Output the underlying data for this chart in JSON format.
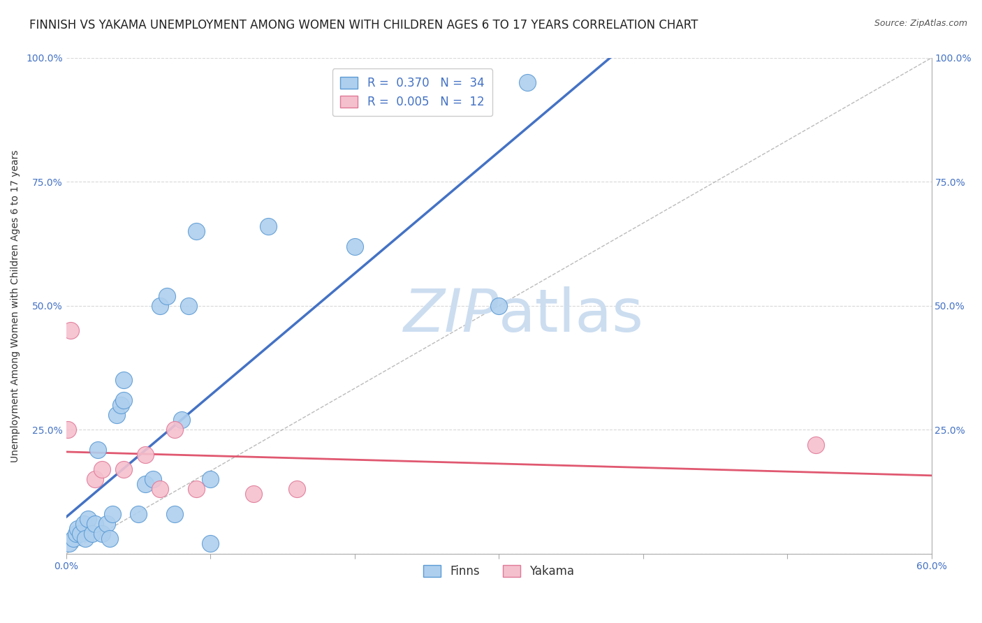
{
  "title": "FINNISH VS YAKAMA UNEMPLOYMENT AMONG WOMEN WITH CHILDREN AGES 6 TO 17 YEARS CORRELATION CHART",
  "source": "Source: ZipAtlas.com",
  "ylabel": "Unemployment Among Women with Children Ages 6 to 17 years",
  "xlim": [
    0.0,
    0.6
  ],
  "ylim": [
    0.0,
    1.0
  ],
  "xticks": [
    0.0,
    0.1,
    0.2,
    0.3,
    0.4,
    0.5,
    0.6
  ],
  "yticks": [
    0.0,
    0.25,
    0.5,
    0.75,
    1.0
  ],
  "finns_R": 0.37,
  "finns_N": 34,
  "yakama_R": 0.005,
  "yakama_N": 12,
  "finns_color": "#aecfee",
  "finns_edge_color": "#5b9bd5",
  "yakama_color": "#f5c0ce",
  "yakama_edge_color": "#e07898",
  "trend_finns_color": "#4472c4",
  "trend_yakama_color": "#e05870",
  "diag_color": "#aaaaaa",
  "watermark_color": "#ccddf0",
  "tick_color": "#4472c4",
  "finns_x": [
    0.002,
    0.005,
    0.007,
    0.008,
    0.01,
    0.012,
    0.013,
    0.015,
    0.018,
    0.02,
    0.022,
    0.025,
    0.028,
    0.03,
    0.032,
    0.035,
    0.038,
    0.04,
    0.04,
    0.05,
    0.055,
    0.06,
    0.065,
    0.07,
    0.075,
    0.08,
    0.085,
    0.09,
    0.1,
    0.1,
    0.14,
    0.2,
    0.3,
    0.32
  ],
  "finns_y": [
    0.02,
    0.03,
    0.04,
    0.05,
    0.04,
    0.06,
    0.03,
    0.07,
    0.04,
    0.06,
    0.21,
    0.04,
    0.06,
    0.03,
    0.08,
    0.28,
    0.3,
    0.31,
    0.35,
    0.08,
    0.14,
    0.15,
    0.5,
    0.52,
    0.08,
    0.27,
    0.5,
    0.65,
    0.02,
    0.15,
    0.66,
    0.62,
    0.5,
    0.95
  ],
  "yakama_x": [
    0.001,
    0.003,
    0.02,
    0.025,
    0.04,
    0.055,
    0.065,
    0.075,
    0.09,
    0.13,
    0.16,
    0.52
  ],
  "yakama_y": [
    0.25,
    0.45,
    0.15,
    0.17,
    0.17,
    0.2,
    0.13,
    0.25,
    0.13,
    0.12,
    0.13,
    0.22
  ],
  "legend_label_finns": "R =  0.370   N =  34",
  "legend_label_yakama": "R =  0.005   N =  12",
  "legend_bottom_finns": "Finns",
  "legend_bottom_yakama": "Yakama",
  "title_fontsize": 12,
  "axis_label_fontsize": 10,
  "tick_fontsize": 10,
  "source_fontsize": 9,
  "background_color": "#ffffff",
  "grid_color": "#d8d8d8"
}
